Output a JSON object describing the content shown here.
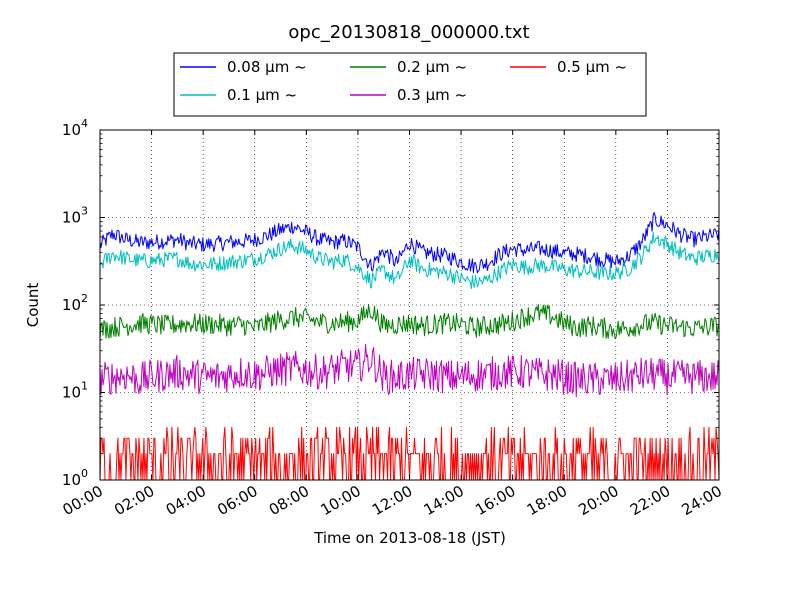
{
  "chart_data": {
    "type": "line",
    "title": "opc_20130818_000000.txt",
    "xlabel": "Time on 2013-08-18 (JST)",
    "ylabel": "Count",
    "yscale": "log",
    "xlim": [
      "2013-08-18T00:00",
      "2013-08-19T00:00"
    ],
    "ylim": [
      1,
      10000
    ],
    "grid": true,
    "legend_position": "top-center, above plot, 3 columns",
    "x_ticks": [
      "00:00",
      "02:00",
      "04:00",
      "06:00",
      "08:00",
      "10:00",
      "12:00",
      "14:00",
      "16:00",
      "18:00",
      "20:00",
      "22:00",
      "24:00"
    ],
    "y_ticks": [
      {
        "base": "10",
        "exp": "0",
        "value": 1
      },
      {
        "base": "10",
        "exp": "1",
        "value": 10
      },
      {
        "base": "10",
        "exp": "2",
        "value": 100
      },
      {
        "base": "10",
        "exp": "3",
        "value": 1000
      },
      {
        "base": "10",
        "exp": "4",
        "value": 10000
      }
    ],
    "x": [
      "00:00",
      "00:30",
      "01:00",
      "01:30",
      "02:00",
      "02:30",
      "03:00",
      "03:30",
      "04:00",
      "04:30",
      "05:00",
      "05:30",
      "06:00",
      "06:30",
      "07:00",
      "07:30",
      "08:00",
      "08:30",
      "09:00",
      "09:30",
      "10:00",
      "10:30",
      "11:00",
      "11:30",
      "12:00",
      "12:30",
      "13:00",
      "13:30",
      "14:00",
      "14:30",
      "15:00",
      "15:30",
      "16:00",
      "16:30",
      "17:00",
      "17:30",
      "18:00",
      "18:30",
      "19:00",
      "19:30",
      "20:00",
      "20:30",
      "21:00",
      "21:30",
      "22:00",
      "22:30",
      "23:00",
      "23:30",
      "24:00"
    ],
    "series": [
      {
        "name": "0.08 μm ~",
        "color": "#0000ff",
        "values": [
          480,
          650,
          560,
          520,
          520,
          540,
          560,
          500,
          490,
          500,
          520,
          530,
          560,
          620,
          720,
          800,
          680,
          560,
          520,
          540,
          460,
          280,
          420,
          300,
          520,
          400,
          380,
          360,
          310,
          280,
          300,
          380,
          440,
          420,
          440,
          420,
          390,
          380,
          360,
          330,
          310,
          360,
          520,
          950,
          820,
          640,
          560,
          600,
          640
        ]
      },
      {
        "name": "0.1 μm ~",
        "color": "#00bfbf",
        "values": [
          290,
          380,
          340,
          320,
          320,
          330,
          340,
          300,
          290,
          295,
          310,
          320,
          340,
          380,
          440,
          480,
          420,
          340,
          310,
          330,
          270,
          190,
          250,
          190,
          330,
          260,
          245,
          230,
          200,
          180,
          190,
          240,
          290,
          270,
          285,
          275,
          255,
          245,
          240,
          230,
          230,
          260,
          360,
          600,
          500,
          390,
          340,
          360,
          390
        ]
      },
      {
        "name": "0.2 μm ~",
        "color": "#008000",
        "values": [
          52,
          56,
          58,
          62,
          60,
          58,
          60,
          62,
          60,
          60,
          58,
          60,
          55,
          62,
          68,
          72,
          70,
          64,
          62,
          64,
          66,
          90,
          58,
          60,
          62,
          58,
          60,
          62,
          60,
          55,
          58,
          60,
          65,
          75,
          80,
          75,
          62,
          55,
          58,
          55,
          52,
          55,
          60,
          62,
          58,
          56,
          54,
          56,
          58
        ]
      },
      {
        "name": "0.3 μm ~",
        "color": "#bf00bf",
        "values": [
          14,
          15,
          16,
          14,
          15,
          16,
          17,
          16,
          15,
          15,
          16,
          17,
          16,
          17,
          18,
          19,
          18,
          17,
          18,
          20,
          20,
          25,
          15,
          15,
          16,
          16,
          16,
          15,
          15,
          16,
          16,
          17,
          17,
          17,
          16,
          16,
          15,
          14,
          14,
          14,
          14,
          15,
          16,
          16,
          15,
          15,
          15,
          15,
          15
        ]
      },
      {
        "name": "0.5 μm ~",
        "color": "#ff0000",
        "values": [
          1.5,
          1.6,
          1.8,
          1.7,
          1.6,
          1.7,
          1.8,
          1.8,
          1.7,
          1.7,
          1.8,
          1.8,
          1.7,
          1.8,
          1.9,
          1.9,
          1.8,
          1.8,
          1.8,
          1.9,
          1.9,
          2.1,
          1.8,
          1.7,
          1.8,
          1.8,
          1.8,
          1.7,
          1.7,
          1.8,
          1.8,
          1.8,
          1.8,
          1.9,
          1.8,
          1.8,
          1.7,
          1.7,
          1.7,
          1.6,
          1.6,
          1.7,
          1.8,
          1.8,
          1.8,
          1.7,
          1.7,
          1.7,
          1.7
        ]
      }
    ]
  }
}
